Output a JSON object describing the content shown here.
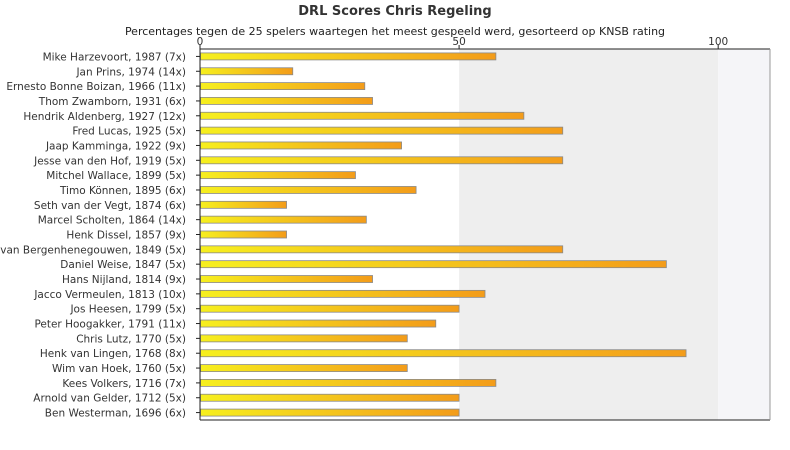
{
  "chart_data": {
    "type": "bar",
    "orientation": "horizontal",
    "title": "DRL Scores Chris Regeling",
    "subtitle": "Percentages tegen de 25 spelers waartegen het meest gespeeld werd, gesorteerd op KNSB rating",
    "xlim": [
      0,
      110
    ],
    "xticks": [
      "0",
      "50",
      "100"
    ],
    "grid": false,
    "legend": "none",
    "categories": [
      "Mike Harzevoort, 1987 (7x)",
      "Jan Prins, 1974 (14x)",
      "Ernesto Bonne Boizan, 1966 (11x)",
      "Thom Zwamborn, 1931 (6x)",
      "Hendrik Aldenberg, 1927 (12x)",
      "Fred Lucas, 1925 (5x)",
      "Jaap Kamminga, 1922 (9x)",
      "Jesse van den Hof, 1919 (5x)",
      "Mitchel Wallace, 1899 (5x)",
      "Timo Können, 1895 (6x)",
      "Seth van der Vegt, 1874 (6x)",
      "Marcel Scholten, 1864 (14x)",
      "Henk Dissel, 1857 (9x)",
      "van Bergenhenegouwen, 1849 (5x)",
      "Daniel Weise, 1847 (5x)",
      "Hans Nijland, 1814 (9x)",
      "Jacco Vermeulen, 1813 (10x)",
      "Jos Heesen, 1799 (5x)",
      "Peter Hoogakker, 1791 (11x)",
      "Chris Lutz, 1770 (5x)",
      "Henk van Lingen, 1768 (8x)",
      "Wim van Hoek, 1760 (5x)",
      "Kees Volkers, 1716 (7x)",
      "Arnold van Gelder, 1712 (5x)",
      "Ben Westerman, 1696 (6x)"
    ],
    "values": [
      57.1,
      17.9,
      31.8,
      33.3,
      62.5,
      70.0,
      38.9,
      70.0,
      30.0,
      41.7,
      16.7,
      32.1,
      16.7,
      70.0,
      90.0,
      33.3,
      55.0,
      50.0,
      45.5,
      40.0,
      93.8,
      40.0,
      57.1,
      50.0,
      50.0
    ]
  },
  "colors": {
    "bar_left": "#f6ef1e",
    "bar_right": "#f39c1a",
    "bar_stroke": "#8a8a8a",
    "plot_band_left": "#ffffff",
    "plot_band_mid": "#eeeeee",
    "plot_band_right": "#f5f5f8",
    "axis": "#222222"
  }
}
